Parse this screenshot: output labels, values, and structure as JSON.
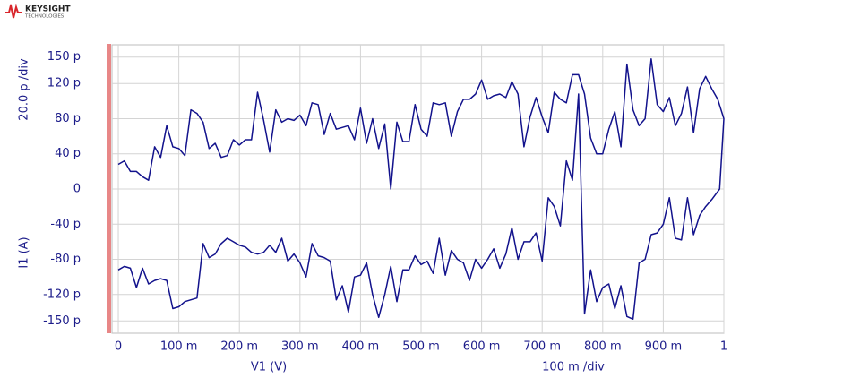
{
  "logo": {
    "name": "KEYSIGHT",
    "sub": "TECHNOLOGIES"
  },
  "chart_data": {
    "type": "line",
    "y_div": "20.0 p /div",
    "y_label": "I1 (A)",
    "x_label": "V1 (V)",
    "x_div": "100 m /div",
    "color": "#12128c",
    "grid": true,
    "xlim": [
      -0.0104,
      1
    ],
    "ylim": [
      -164,
      164
    ],
    "xticks": [
      0,
      {
        "value": 0.1,
        "label": "100 m"
      },
      {
        "value": 0.2,
        "label": "200 m"
      },
      {
        "value": 0.3,
        "label": "300 m"
      },
      {
        "value": 0.4,
        "label": "400 m"
      },
      {
        "value": 0.5,
        "label": "500 m"
      },
      {
        "value": 0.6,
        "label": "600 m"
      },
      {
        "value": 0.7,
        "label": "700 m"
      },
      {
        "value": 0.8,
        "label": "800 m"
      },
      {
        "value": 0.9,
        "label": "900 m"
      },
      1
    ],
    "yticks": [
      {
        "value": 150,
        "label": "150 p"
      },
      {
        "value": 120,
        "label": "120 p"
      },
      {
        "value": 80,
        "label": "80 p"
      },
      {
        "value": 40,
        "label": "40 p"
      },
      0,
      {
        "value": -40,
        "label": "-40 p"
      },
      {
        "value": -80,
        "label": "-80 p"
      },
      {
        "value": -120,
        "label": "-120 p"
      },
      {
        "value": -150,
        "label": "-150 p"
      }
    ],
    "x": [
      0,
      0.01,
      0.02,
      0.03,
      0.04,
      0.05,
      0.06,
      0.07,
      0.08,
      0.09,
      0.1,
      0.11,
      0.12,
      0.13,
      0.14,
      0.15,
      0.16,
      0.17,
      0.18,
      0.19,
      0.2,
      0.21,
      0.22,
      0.23,
      0.24,
      0.25,
      0.26,
      0.27,
      0.28,
      0.29,
      0.3,
      0.31,
      0.32,
      0.33,
      0.34,
      0.35,
      0.36,
      0.37,
      0.38,
      0.39,
      0.4,
      0.41,
      0.42,
      0.43,
      0.44,
      0.45,
      0.46,
      0.47,
      0.48,
      0.49,
      0.5,
      0.51,
      0.52,
      0.53,
      0.54,
      0.55,
      0.56,
      0.57,
      0.58,
      0.59,
      0.6,
      0.61,
      0.62,
      0.63,
      0.64,
      0.65,
      0.66,
      0.67,
      0.68,
      0.69,
      0.7,
      0.71,
      0.72,
      0.73,
      0.74,
      0.75,
      0.76,
      0.77,
      0.78,
      0.79,
      0.8,
      0.81,
      0.82,
      0.83,
      0.84,
      0.85,
      0.86,
      0.87,
      0.88,
      0.89,
      0.9,
      0.91,
      0.92,
      0.93,
      0.94,
      0.95,
      0.96,
      0.97,
      0.98,
      0.99,
      1,
      0.993,
      0.98,
      0.97,
      0.96,
      0.95,
      0.94,
      0.93,
      0.92,
      0.91,
      0.9,
      0.89,
      0.88,
      0.87,
      0.86,
      0.85,
      0.84,
      0.83,
      0.82,
      0.81,
      0.8,
      0.79,
      0.78,
      0.77,
      0.76,
      0.75,
      0.74,
      0.73,
      0.72,
      0.71,
      0.7,
      0.69,
      0.68,
      0.67,
      0.66,
      0.65,
      0.64,
      0.63,
      0.62,
      0.61,
      0.6,
      0.59,
      0.58,
      0.57,
      0.56,
      0.55,
      0.54,
      0.53,
      0.52,
      0.51,
      0.5,
      0.49,
      0.48,
      0.47,
      0.46,
      0.45,
      0.44,
      0.43,
      0.42,
      0.41,
      0.4,
      0.39,
      0.38,
      0.37,
      0.36,
      0.35,
      0.34,
      0.33,
      0.32,
      0.31,
      0.3,
      0.29,
      0.28,
      0.27,
      0.26,
      0.25,
      0.24,
      0.23,
      0.22,
      0.21,
      0.2,
      0.19,
      0.18,
      0.17,
      0.16,
      0.15,
      0.14,
      0.13,
      0.12,
      0.11,
      0.1,
      0.09,
      0.08,
      0.07,
      0.06,
      0.05,
      0.04,
      0.03,
      0.02,
      0.01,
      0
    ],
    "values": [
      28,
      32,
      20,
      20,
      14,
      10,
      48,
      36,
      72,
      48,
      46,
      38,
      90,
      86,
      76,
      46,
      52,
      36,
      38,
      56,
      50,
      56,
      56,
      110,
      78,
      42,
      90,
      76,
      80,
      78,
      84,
      72,
      98,
      96,
      62,
      86,
      68,
      70,
      72,
      56,
      92,
      52,
      80,
      46,
      74,
      0,
      76,
      54,
      54,
      96,
      68,
      60,
      98,
      96,
      98,
      60,
      88,
      102,
      102,
      108,
      124,
      102,
      106,
      108,
      104,
      122,
      108,
      48,
      82,
      104,
      82,
      64,
      110,
      102,
      98,
      130,
      130,
      108,
      58,
      40,
      40,
      68,
      88,
      48,
      142,
      90,
      72,
      80,
      148,
      96,
      88,
      104,
      72,
      86,
      116,
      64,
      114,
      128,
      114,
      102,
      80,
      0,
      -12,
      -20,
      -30,
      -52,
      -10,
      -58,
      -56,
      -10,
      -40,
      -50,
      -52,
      -80,
      -84,
      -148,
      -145,
      -110,
      -136,
      -108,
      -112,
      -128,
      -92,
      -142,
      108,
      10,
      32,
      -42,
      -20,
      -10,
      -82,
      -50,
      -60,
      -60,
      -80,
      -44,
      -74,
      -90,
      -68,
      -80,
      -90,
      -80,
      -104,
      -84,
      -80,
      -70,
      -98,
      -56,
      -96,
      -82,
      -86,
      -76,
      -92,
      -92,
      -128,
      -88,
      -120,
      -146,
      -120,
      -84,
      -98,
      -100,
      -140,
      -110,
      -126,
      -82,
      -78,
      -76,
      -62,
      -100,
      -84,
      -74,
      -82,
      -56,
      -72,
      -64,
      -72,
      -74,
      -72,
      -66,
      -64,
      -60,
      -56,
      -62,
      -74,
      -78,
      -62,
      -124,
      -126,
      -128,
      -134,
      -136,
      -104,
      -102,
      -104,
      -108,
      -90,
      -112,
      -90,
      -88,
      -92
    ]
  }
}
